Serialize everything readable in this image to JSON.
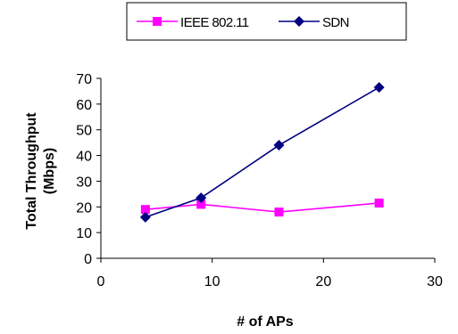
{
  "chart_data": {
    "type": "line",
    "title": "",
    "xlabel": "# of APs",
    "ylabel_lines": [
      "Total Throughput",
      "(Mbps)"
    ],
    "xlim": [
      0,
      30
    ],
    "ylim": [
      0,
      70
    ],
    "x_ticks": [
      0,
      10,
      20,
      30
    ],
    "y_ticks": [
      0,
      10,
      20,
      30,
      40,
      50,
      60,
      70
    ],
    "grid": false,
    "legend_position": "top",
    "series": [
      {
        "name": "IEEE 802.11",
        "color": "#ff00ff",
        "marker": "square",
        "x": [
          4,
          9,
          16,
          25
        ],
        "y": [
          19,
          21,
          18,
          21.5
        ]
      },
      {
        "name": "SDN",
        "color": "#000080",
        "marker": "diamond",
        "x": [
          4,
          9,
          16,
          25
        ],
        "y": [
          16,
          23.5,
          44,
          66.5
        ]
      }
    ]
  }
}
